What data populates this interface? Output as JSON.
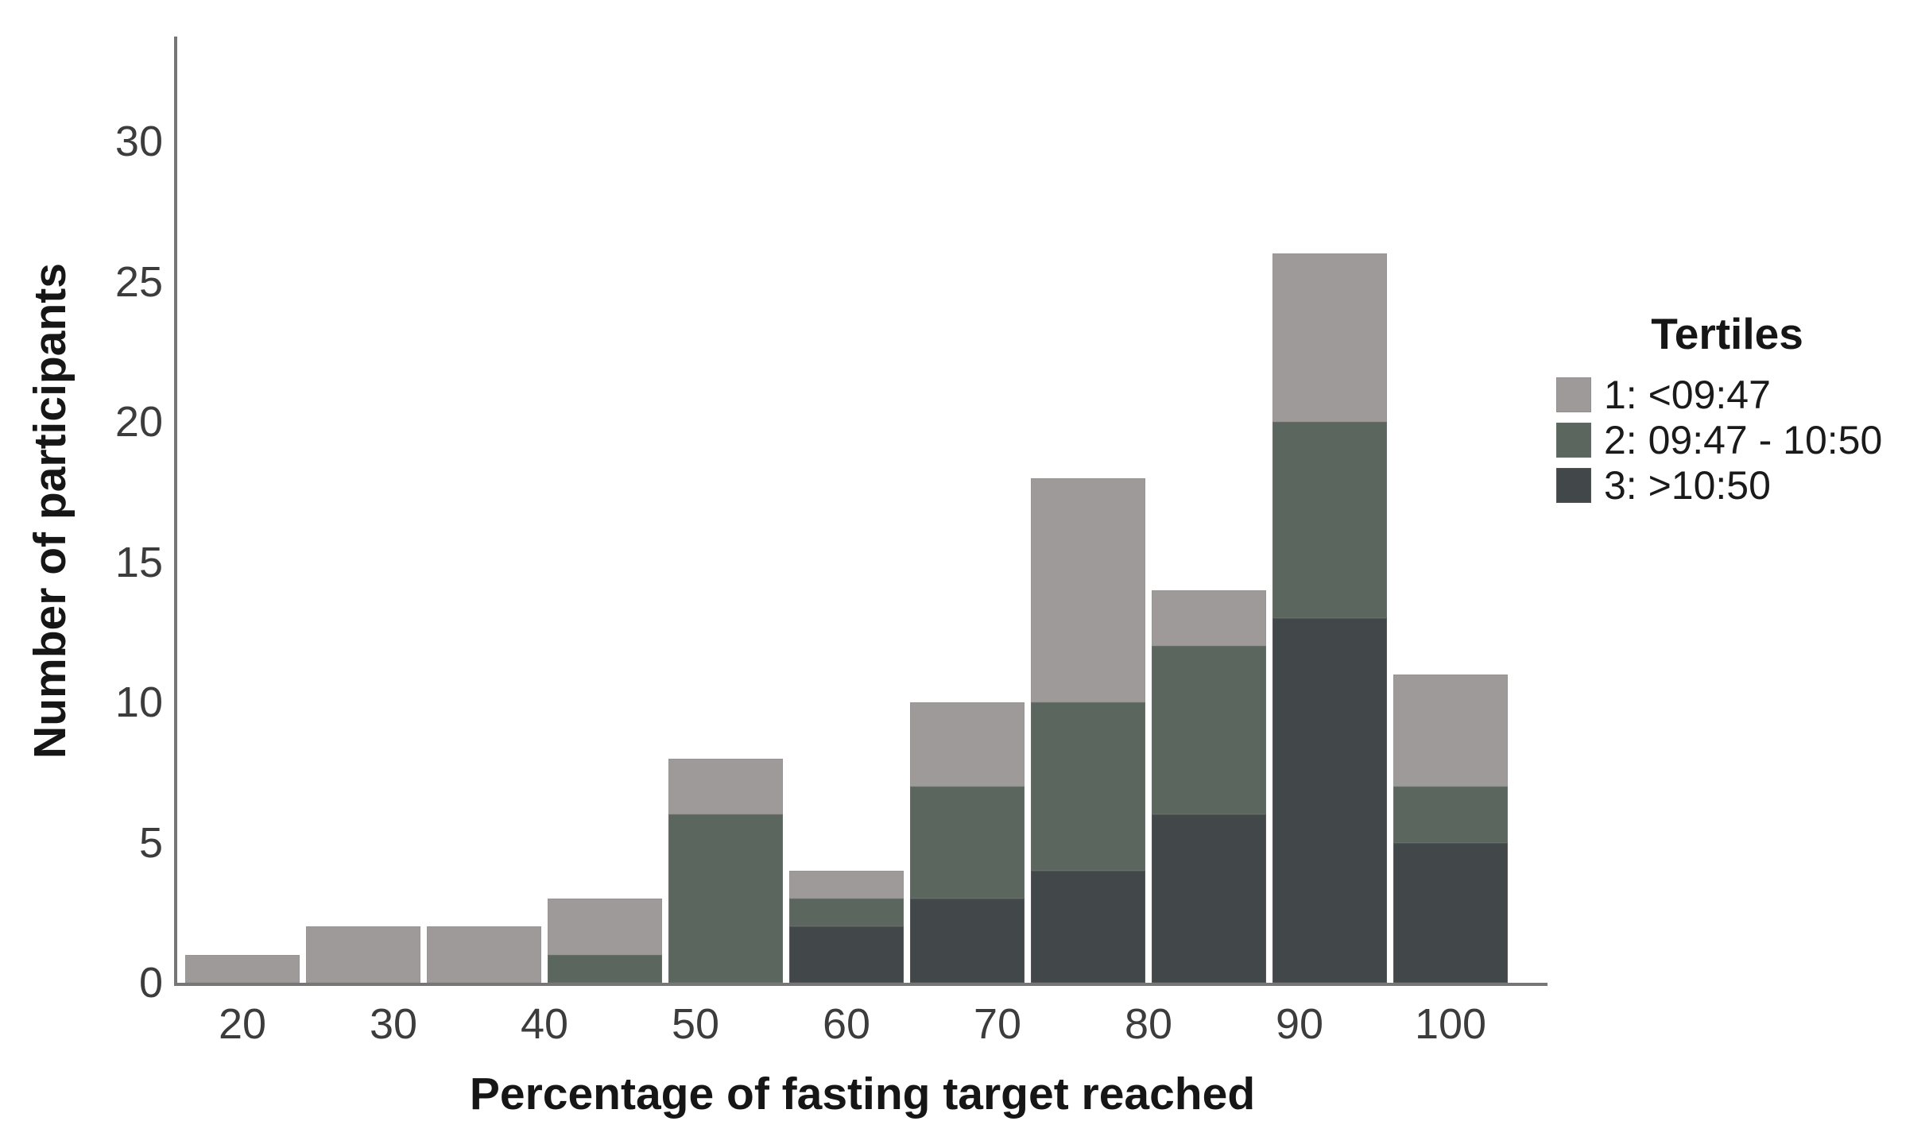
{
  "chart_data": {
    "type": "bar",
    "stacked": true,
    "xlabel": "Percentage of fasting target reached",
    "ylabel": "Number of participants",
    "bin_centers": [
      20,
      28,
      36,
      44,
      52,
      60,
      68,
      76,
      84,
      92,
      100
    ],
    "bin_width": 8,
    "x_ticks": [
      20,
      30,
      40,
      50,
      60,
      70,
      80,
      90,
      100
    ],
    "y_ticks": [
      0,
      5,
      10,
      15,
      20,
      25,
      30
    ],
    "ylim": [
      0,
      33.6
    ],
    "xlim": [
      16,
      104
    ],
    "grid": false,
    "stack_order_bottom_to_top": [
      "3: >10:50",
      "2: 09:47 - 10:50",
      "1: <09:47"
    ],
    "series": [
      {
        "name": "1: <09:47",
        "color": "#9e9a99",
        "values": [
          1,
          2,
          2,
          2,
          2,
          1,
          3,
          8,
          2,
          6,
          4
        ]
      },
      {
        "name": "2: 09:47 - 10:50",
        "color": "#5b675e",
        "values": [
          0,
          0,
          0,
          1,
          6,
          1,
          4,
          6,
          6,
          7,
          2
        ]
      },
      {
        "name": "3: >10:50",
        "color": "#424749",
        "values": [
          0,
          0,
          0,
          0,
          0,
          2,
          3,
          4,
          6,
          13,
          5
        ]
      }
    ],
    "bar_totals": [
      1,
      2,
      2,
      3,
      8,
      4,
      10,
      18,
      14,
      26,
      11
    ],
    "legend": {
      "title": "Tertiles",
      "position": "right",
      "entries": [
        {
          "label": "1: <09:47",
          "color": "#9e9a99"
        },
        {
          "label": "2: 09:47 - 10:50",
          "color": "#5b675e"
        },
        {
          "label": "3: >10:50",
          "color": "#424749"
        }
      ]
    },
    "axis_color": "#767676",
    "tick_text_color": "#3c3c3c"
  }
}
